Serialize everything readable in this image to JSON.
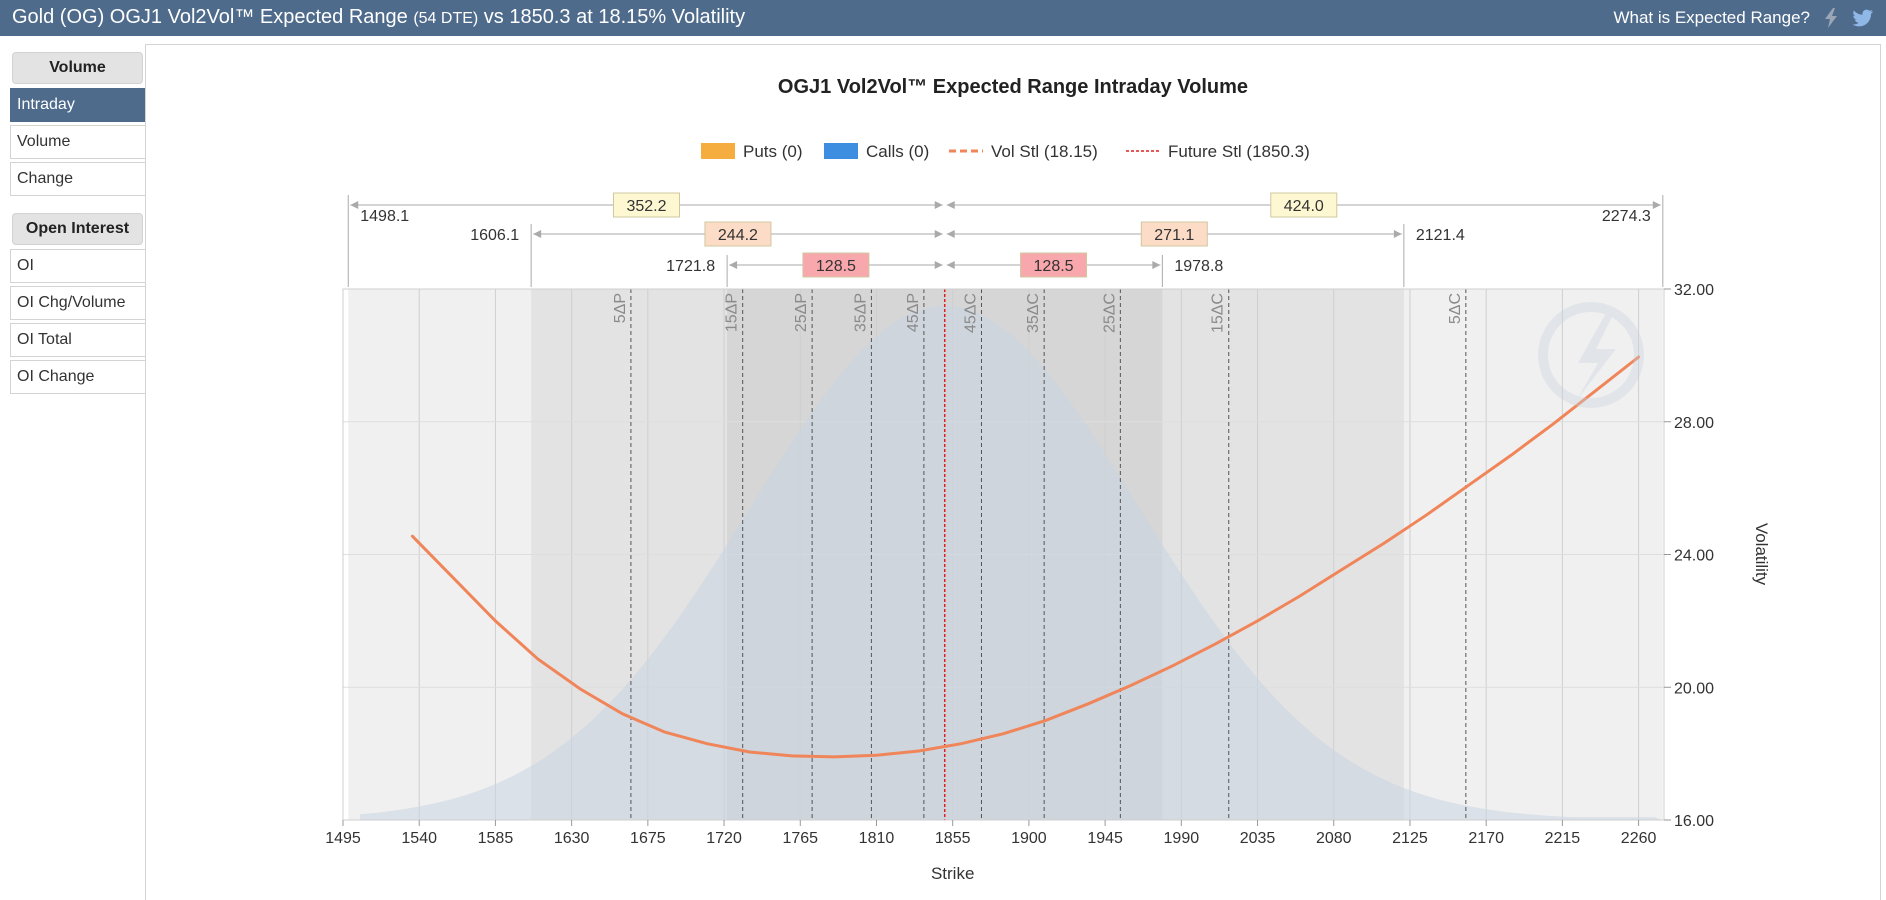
{
  "header": {
    "title_main": "Gold (OG) OGJ1 Vol2Vol™ Expected Range",
    "title_dte": "(54 DTE)",
    "title_rest": "vs 1850.3 at 18.15% Volatility",
    "help_link": "What is Expected Range?",
    "icons": [
      "lightning-icon",
      "twitter-bird-icon"
    ]
  },
  "sidebar": {
    "volume_section": "Volume",
    "volume_items": [
      "Intraday",
      "Volume",
      "Change"
    ],
    "oi_section": "Open Interest",
    "oi_items": [
      "OI",
      "OI Chg/Volume",
      "OI Total",
      "OI Change"
    ],
    "active_item": "Intraday"
  },
  "chart_data": {
    "type": "line",
    "title": "OGJ1 Vol2Vol™ Expected Range Intraday Volume",
    "legend": [
      {
        "label": "Puts (0)",
        "color": "#f4ad3e",
        "kind": "box"
      },
      {
        "label": "Calls (0)",
        "color": "#3d8de0",
        "kind": "box"
      },
      {
        "label": "Vol Stl (18.15)",
        "color": "#f0855a",
        "kind": "dash"
      },
      {
        "label": "Future Stl (1850.3)",
        "color": "#e02020",
        "kind": "dot"
      }
    ],
    "legend_position": "top-center",
    "xlabel": "Strike",
    "ylabel": "Volatility",
    "xlim": [
      1495,
      2275
    ],
    "ylim": [
      16,
      32
    ],
    "x_ticks": [
      "1495",
      "1540",
      "1585",
      "1630",
      "1675",
      "1720",
      "1765",
      "1810",
      "1855",
      "1900",
      "1945",
      "1990",
      "2035",
      "2080",
      "2125",
      "2170",
      "2215",
      "2260"
    ],
    "y_ticks": [
      "16.00",
      "20.00",
      "24.00",
      "28.00",
      "32.00"
    ],
    "future_settle": 1850.3,
    "vol_settle": 18.15,
    "ranges": [
      {
        "low": 1498.1,
        "high": 2274.3,
        "down": "352.2",
        "up": "424.0",
        "low_label": "1498.1",
        "high_label": "2274.3",
        "color": "#fdf8d2",
        "shade": "#f0f0f0"
      },
      {
        "low": 1606.1,
        "high": 2121.4,
        "down": "244.2",
        "up": "271.1",
        "low_label": "1606.1",
        "high_label": "2121.4",
        "color": "#fcdcc7",
        "shade": "#e3e3e3"
      },
      {
        "low": 1721.8,
        "high": 1978.8,
        "down": "128.5",
        "up": "128.5",
        "low_label": "1721.8",
        "high_label": "1978.8",
        "color": "#f8a7ad",
        "shade": "#d6d6d6"
      }
    ],
    "delta_lines": [
      {
        "label": "5ΔP",
        "x": 1665
      },
      {
        "label": "15ΔP",
        "x": 1731
      },
      {
        "label": "25ΔP",
        "x": 1772
      },
      {
        "label": "35ΔP",
        "x": 1807
      },
      {
        "label": "45ΔP",
        "x": 1838
      },
      {
        "label": "45ΔC",
        "x": 1872
      },
      {
        "label": "35ΔC",
        "x": 1909
      },
      {
        "label": "25ΔC",
        "x": 1954
      },
      {
        "label": "15ΔC",
        "x": 2018
      },
      {
        "label": "5ΔC",
        "x": 2158
      }
    ],
    "series": [
      {
        "name": "Vol Stl (18.15)",
        "color": "#f0855a",
        "x": [
          1536,
          1560,
          1585,
          1610,
          1635,
          1660,
          1685,
          1710,
          1735,
          1760,
          1785,
          1810,
          1835,
          1860,
          1885,
          1910,
          1935,
          1960,
          1985,
          2010,
          2035,
          2060,
          2085,
          2110,
          2135,
          2160,
          2185,
          2210,
          2235,
          2260
        ],
        "y": [
          24.55,
          23.3,
          22.0,
          20.85,
          19.95,
          19.2,
          18.65,
          18.3,
          18.05,
          17.93,
          17.9,
          17.95,
          18.08,
          18.3,
          18.6,
          19.0,
          19.5,
          20.05,
          20.65,
          21.3,
          22.0,
          22.75,
          23.55,
          24.35,
          25.2,
          26.1,
          27.0,
          27.95,
          28.95,
          29.95
        ]
      }
    ],
    "distribution": {
      "color": "#c9d6e2",
      "mean": 1850.3,
      "sd": 115,
      "peak": 31.5
    },
    "grid": true,
    "watermark": "logo"
  }
}
